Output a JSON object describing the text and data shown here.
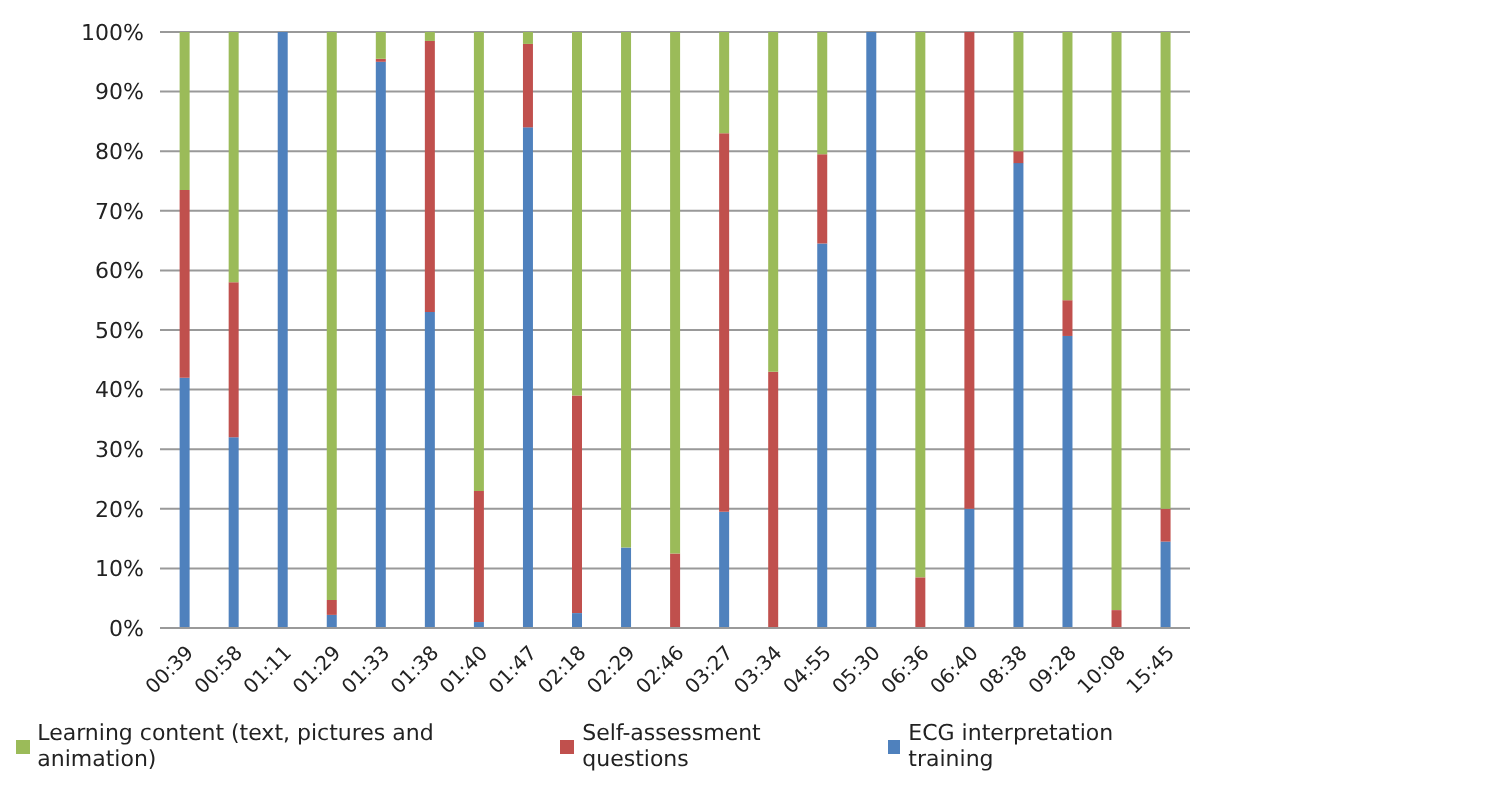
{
  "chart_data": {
    "type": "bar",
    "stacked": true,
    "categories": [
      "00:39",
      "00:58",
      "01:11",
      "01:29",
      "01:33",
      "01:38",
      "01:40",
      "01:47",
      "02:18",
      "02:29",
      "02:46",
      "03:27",
      "03:34",
      "04:55",
      "05:30",
      "06:36",
      "06:40",
      "08:38",
      "09:28",
      "10:08",
      "15:45"
    ],
    "series": [
      {
        "name": "ECG interpretation training",
        "color": "#4f81bd",
        "values": [
          42,
          32,
          100,
          2.2,
          95,
          53,
          1,
          84,
          2.5,
          13.5,
          0,
          19.5,
          0,
          64.5,
          100,
          0,
          20,
          78,
          49,
          0,
          14.5
        ]
      },
      {
        "name": "Self-assessment questions",
        "color": "#c0504d",
        "values": [
          31.5,
          26,
          0,
          2.5,
          0.5,
          45.5,
          22,
          14,
          36.5,
          0,
          12.5,
          63.5,
          43,
          15,
          0,
          8.5,
          80,
          2,
          6,
          3,
          5.5
        ]
      },
      {
        "name": "Learning content (text, pictures and animation)",
        "color": "#9bbb59",
        "values": [
          26.5,
          42,
          0,
          95.3,
          4.5,
          1.5,
          77,
          2,
          61,
          86.5,
          87.5,
          17,
          57,
          20.5,
          0,
          91.5,
          0,
          20,
          45,
          97,
          80
        ]
      }
    ],
    "ylim": [
      0,
      100
    ],
    "yticks": [
      {
        "value": 0,
        "label": "0%"
      },
      {
        "value": 10,
        "label": "10%"
      },
      {
        "value": 20,
        "label": "20%"
      },
      {
        "value": 30,
        "label": "30%"
      },
      {
        "value": 40,
        "label": "40%"
      },
      {
        "value": 50,
        "label": "50%"
      },
      {
        "value": 60,
        "label": "60%"
      },
      {
        "value": 70,
        "label": "70%"
      },
      {
        "value": 80,
        "label": "80%"
      },
      {
        "value": 90,
        "label": "90%"
      },
      {
        "value": 100,
        "label": "100%"
      }
    ],
    "grid": "y",
    "legend": "bottom"
  }
}
